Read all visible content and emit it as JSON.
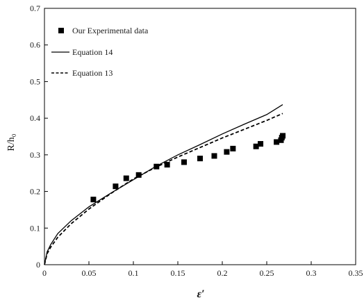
{
  "chart_data": {
    "type": "scatter",
    "title": "",
    "xlabel": "ε′",
    "ylabel": "R/h₀",
    "xlim": [
      0,
      0.35
    ],
    "ylim": [
      0,
      0.7
    ],
    "x_ticks": [
      "0",
      "0.05",
      "0.1",
      "0.15",
      "0.2",
      "0.25",
      "0.3",
      "0.35"
    ],
    "y_ticks": [
      "0",
      "0.1",
      "0.2",
      "0.3",
      "0.4",
      "0.5",
      "0.6",
      "0.7"
    ],
    "grid": false,
    "legend_position": "top-left",
    "series": [
      {
        "name": "Our Experimental data",
        "kind": "marker",
        "marker": "square",
        "color": "#000000",
        "points": [
          [
            0.055,
            0.178
          ],
          [
            0.08,
            0.214
          ],
          [
            0.092,
            0.236
          ],
          [
            0.106,
            0.245
          ],
          [
            0.126,
            0.268
          ],
          [
            0.138,
            0.273
          ],
          [
            0.157,
            0.28
          ],
          [
            0.175,
            0.29
          ],
          [
            0.191,
            0.297
          ],
          [
            0.205,
            0.308
          ],
          [
            0.212,
            0.317
          ],
          [
            0.238,
            0.323
          ],
          [
            0.243,
            0.33
          ],
          [
            0.261,
            0.335
          ],
          [
            0.266,
            0.34
          ],
          [
            0.267,
            0.347
          ],
          [
            0.268,
            0.352
          ]
        ]
      },
      {
        "name": "Equation 14",
        "kind": "line",
        "dash": "solid",
        "color": "#000000",
        "points": [
          [
            0.0,
            0.0
          ],
          [
            0.003,
            0.035
          ],
          [
            0.007,
            0.055
          ],
          [
            0.015,
            0.085
          ],
          [
            0.03,
            0.12
          ],
          [
            0.05,
            0.158
          ],
          [
            0.075,
            0.196
          ],
          [
            0.1,
            0.232
          ],
          [
            0.125,
            0.268
          ],
          [
            0.15,
            0.3
          ],
          [
            0.175,
            0.328
          ],
          [
            0.2,
            0.357
          ],
          [
            0.225,
            0.384
          ],
          [
            0.25,
            0.41
          ],
          [
            0.268,
            0.437
          ]
        ]
      },
      {
        "name": "Equation 13",
        "kind": "line",
        "dash": "dashed",
        "color": "#000000",
        "points": [
          [
            0.0,
            0.0
          ],
          [
            0.003,
            0.03
          ],
          [
            0.007,
            0.048
          ],
          [
            0.015,
            0.075
          ],
          [
            0.03,
            0.112
          ],
          [
            0.05,
            0.152
          ],
          [
            0.075,
            0.195
          ],
          [
            0.1,
            0.234
          ],
          [
            0.125,
            0.266
          ],
          [
            0.15,
            0.294
          ],
          [
            0.175,
            0.32
          ],
          [
            0.2,
            0.346
          ],
          [
            0.225,
            0.37
          ],
          [
            0.25,
            0.394
          ],
          [
            0.268,
            0.413
          ]
        ]
      }
    ]
  }
}
